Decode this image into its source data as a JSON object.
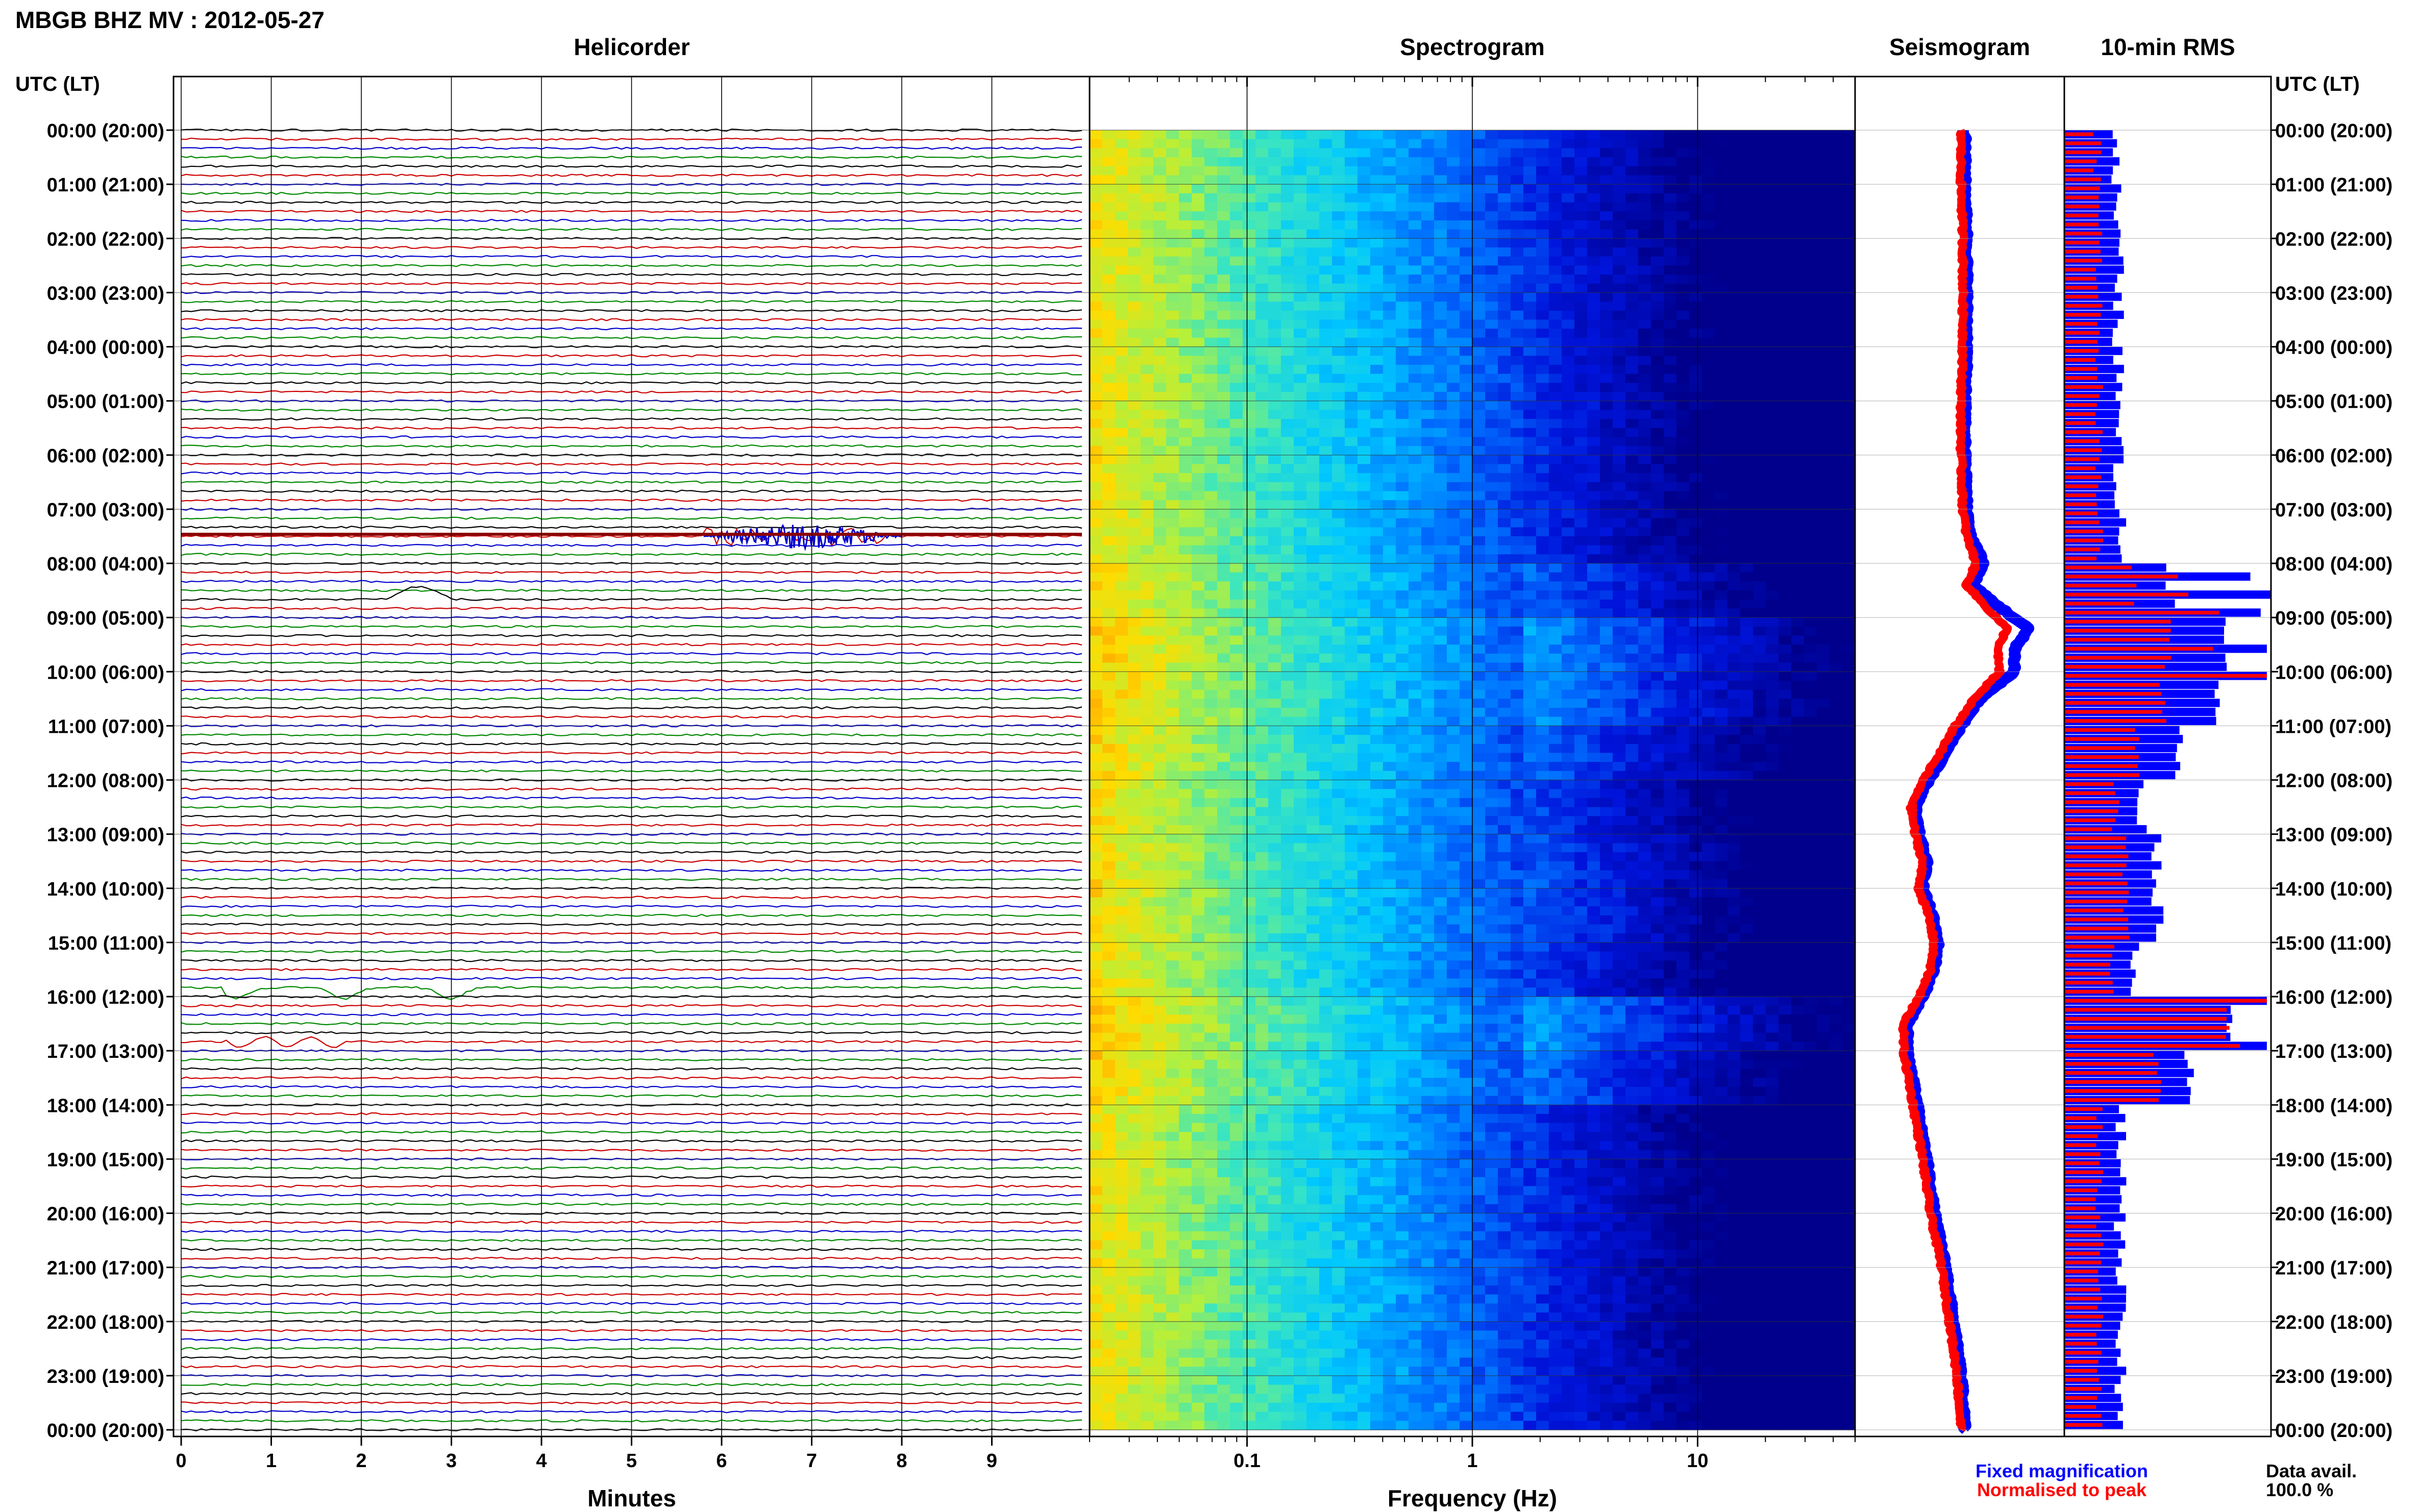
{
  "header": {
    "title": "MBGB BHZ MV : 2012-05-27",
    "utc_label_left": "UTC (LT)",
    "utc_label_right": "UTC (LT)"
  },
  "panels": {
    "helicorder": "Helicorder",
    "spectrogram": "Spectrogram",
    "seismogram": "Seismogram",
    "rms": "10-min RMS"
  },
  "time_labels": [
    "00:00 (20:00)",
    "01:00 (21:00)",
    "02:00 (22:00)",
    "03:00 (23:00)",
    "04:00 (00:00)",
    "05:00 (01:00)",
    "06:00 (02:00)",
    "07:00 (03:00)",
    "08:00 (04:00)",
    "09:00 (05:00)",
    "10:00 (06:00)",
    "11:00 (07:00)",
    "12:00 (08:00)",
    "13:00 (09:00)",
    "14:00 (10:00)",
    "15:00 (11:00)",
    "16:00 (12:00)",
    "17:00 (13:00)",
    "18:00 (14:00)",
    "19:00 (15:00)",
    "20:00 (16:00)",
    "21:00 (17:00)",
    "22:00 (18:00)",
    "23:00 (19:00)",
    "00:00 (20:00)"
  ],
  "footer": {
    "fixed_label": "Fixed magnification",
    "normalised_label": "Normalised to peak",
    "data_avail_label": "Data avail.",
    "data_avail_value": "100.0 %"
  },
  "colors": {
    "trace_cycle": [
      "#000000",
      "#cc0000",
      "#0000cc",
      "#008800"
    ],
    "fixed": "#0000ff",
    "normalised": "#ff0000",
    "spectrogram_low": "#00008b",
    "spectrogram_high": "#ffcc00"
  },
  "chart_data": [
    {
      "type": "line",
      "name": "helicorder",
      "title": "Helicorder",
      "xlabel": "Minutes",
      "xlim": [
        0,
        10
      ],
      "x_ticks": [
        "0",
        "1",
        "2",
        "3",
        "4",
        "5",
        "6",
        "7",
        "8",
        "9"
      ],
      "traces_per_hour": 6,
      "events": [
        {
          "hour": 7.5,
          "start_min": 5.8,
          "end_min": 8.0,
          "kind": "burst",
          "color": "#0000cc"
        },
        {
          "hour": 7.5,
          "start_min": 0.0,
          "end_min": 10.0,
          "kind": "thick",
          "color": "#8b0000"
        },
        {
          "hour": 8.6,
          "start_min": 2.3,
          "end_min": 3.0,
          "kind": "bump"
        },
        {
          "hour": 15.9,
          "start_min": 0.5,
          "end_min": 3.3,
          "kind": "dip"
        },
        {
          "hour": 16.8,
          "start_min": 0.5,
          "end_min": 1.8,
          "kind": "wiggle"
        }
      ]
    },
    {
      "type": "heatmap",
      "name": "spectrogram",
      "title": "Spectrogram",
      "xlabel": "Frequency (Hz)",
      "x_scale": "log",
      "xlim": [
        0.02,
        50
      ],
      "x_ticks": [
        0.1,
        1,
        10
      ],
      "x_tick_labels": [
        "0.1",
        "1",
        "10"
      ]
    },
    {
      "type": "line",
      "name": "seismogram",
      "title": "Seismogram",
      "series": [
        {
          "name": "Fixed magnification",
          "hour": [
            0,
            1,
            2,
            3,
            4,
            5,
            6,
            7,
            7.5,
            8,
            8.4,
            8.8,
            9.2,
            9.6,
            10,
            10.5,
            11,
            11.5,
            12,
            12.5,
            13,
            13.5,
            14,
            14.5,
            15,
            15.5,
            16,
            16.5,
            17,
            18,
            19,
            20,
            21,
            22,
            23,
            24
          ],
          "value": [
            0.52,
            0.52,
            0.53,
            0.53,
            0.53,
            0.52,
            0.52,
            0.53,
            0.55,
            0.62,
            0.56,
            0.7,
            0.85,
            0.78,
            0.78,
            0.6,
            0.5,
            0.42,
            0.33,
            0.26,
            0.28,
            0.32,
            0.3,
            0.35,
            0.38,
            0.36,
            0.3,
            0.22,
            0.22,
            0.27,
            0.32,
            0.36,
            0.42,
            0.46,
            0.5,
            0.52
          ]
        },
        {
          "name": "Normalised to peak",
          "hour": [
            0,
            1,
            2,
            3,
            4,
            5,
            6,
            7,
            7.5,
            8,
            8.4,
            8.8,
            9.2,
            9.6,
            10,
            10.5,
            11,
            11.5,
            12,
            12.5,
            13,
            13.5,
            14,
            14.5,
            15,
            15.5,
            16,
            16.5,
            17,
            18,
            19,
            20,
            21,
            22,
            23,
            24
          ],
          "value": [
            0.5,
            0.5,
            0.51,
            0.51,
            0.51,
            0.5,
            0.5,
            0.51,
            0.53,
            0.58,
            0.53,
            0.63,
            0.74,
            0.69,
            0.7,
            0.57,
            0.47,
            0.39,
            0.3,
            0.24,
            0.26,
            0.3,
            0.28,
            0.33,
            0.36,
            0.34,
            0.28,
            0.2,
            0.2,
            0.25,
            0.3,
            0.34,
            0.4,
            0.44,
            0.48,
            0.5
          ]
        }
      ]
    },
    {
      "type": "bar",
      "name": "rms",
      "title": "10-min RMS",
      "bins_per_hour": 6,
      "fixed_hourly": [
        0.25,
        0.25,
        0.26,
        0.26,
        0.26,
        0.26,
        0.26,
        0.27,
        0.52,
        0.8,
        0.75,
        0.55,
        0.38,
        0.45,
        0.45,
        0.35,
        0.8,
        0.6,
        0.27,
        0.28,
        0.27,
        0.27,
        0.27,
        0.26
      ],
      "norm_hourly": [
        0.16,
        0.17,
        0.17,
        0.17,
        0.17,
        0.17,
        0.17,
        0.17,
        0.33,
        0.5,
        0.48,
        0.35,
        0.25,
        0.3,
        0.3,
        0.23,
        0.8,
        0.45,
        0.17,
        0.17,
        0.17,
        0.17,
        0.17,
        0.17
      ],
      "peaks": [
        {
          "bin": 49,
          "fixed": 0.9,
          "norm": 0.55
        },
        {
          "bin": 51,
          "fixed": 1.0,
          "norm": 0.6
        },
        {
          "bin": 53,
          "fixed": 0.95,
          "norm": 0.75
        },
        {
          "bin": 57,
          "fixed": 0.98,
          "norm": 0.72
        },
        {
          "bin": 60,
          "fixed": 0.98,
          "norm": 0.98
        },
        {
          "bin": 96,
          "fixed": 0.98,
          "norm": 0.98
        },
        {
          "bin": 101,
          "fixed": 0.98,
          "norm": 0.85
        }
      ]
    }
  ]
}
